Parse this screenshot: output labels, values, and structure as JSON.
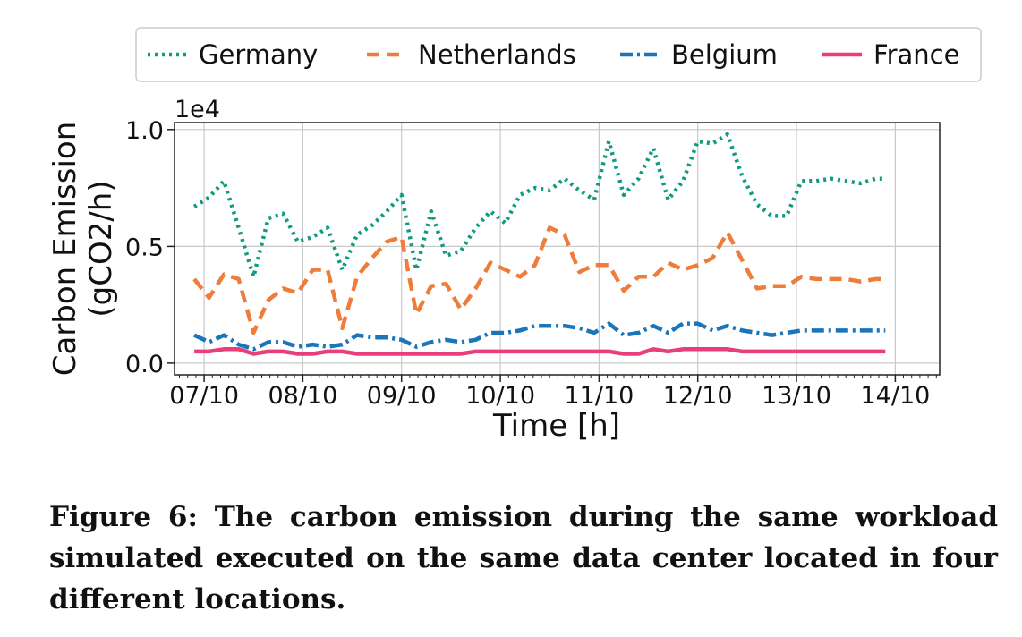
{
  "chart_data": {
    "type": "line",
    "title": "",
    "xlabel": "Time [h]",
    "ylabel": "Carbon Emission (gCO2/h)",
    "ylabel_lines": [
      "Carbon Emission",
      "(gCO2/h)"
    ],
    "y_offset_label": "1e4",
    "y_scale_note": "values in units of 1e4 gCO2/h",
    "ylim": [
      -0.05,
      1.03
    ],
    "yticks": [
      0.0,
      0.5,
      1.0
    ],
    "ytick_labels": [
      "0.0",
      "0.5",
      "1.0"
    ],
    "xlim": [
      -0.3,
      7.45
    ],
    "xticks": [
      0,
      1,
      2,
      3,
      4,
      5,
      6,
      7
    ],
    "xtick_labels": [
      "07/10",
      "08/10",
      "09/10",
      "10/10",
      "11/10",
      "12/10",
      "13/10",
      "14/10"
    ],
    "x_unit": "days since 07/10 00:00",
    "grid": true,
    "legend_position": "top, outside plot",
    "x": [
      -0.1,
      0.05,
      0.2,
      0.35,
      0.5,
      0.65,
      0.8,
      0.95,
      1.1,
      1.25,
      1.4,
      1.55,
      1.7,
      1.85,
      2.0,
      2.15,
      2.3,
      2.45,
      2.6,
      2.75,
      2.9,
      3.05,
      3.2,
      3.35,
      3.5,
      3.65,
      3.8,
      3.95,
      4.1,
      4.25,
      4.4,
      4.55,
      4.7,
      4.85,
      5.0,
      5.15,
      5.3,
      5.45,
      5.6,
      5.75,
      5.9,
      6.05,
      6.2,
      6.35,
      6.5,
      6.65,
      6.8,
      6.9
    ],
    "series": [
      {
        "name": "Germany",
        "color": "#109b80",
        "dash": "3 5",
        "values": [
          0.67,
          0.71,
          0.78,
          0.58,
          0.37,
          0.62,
          0.64,
          0.52,
          0.54,
          0.58,
          0.4,
          0.55,
          0.59,
          0.65,
          0.72,
          0.4,
          0.65,
          0.46,
          0.48,
          0.58,
          0.65,
          0.6,
          0.72,
          0.75,
          0.74,
          0.79,
          0.74,
          0.7,
          0.95,
          0.72,
          0.79,
          0.92,
          0.7,
          0.78,
          0.95,
          0.94,
          0.98,
          0.8,
          0.68,
          0.63,
          0.63,
          0.78,
          0.78,
          0.79,
          0.78,
          0.77,
          0.79,
          0.79
        ]
      },
      {
        "name": "Netherlands",
        "color": "#ee7c3a",
        "dash": "14 8",
        "values": [
          0.36,
          0.28,
          0.38,
          0.36,
          0.13,
          0.27,
          0.32,
          0.3,
          0.4,
          0.4,
          0.15,
          0.37,
          0.45,
          0.52,
          0.54,
          0.21,
          0.33,
          0.34,
          0.23,
          0.32,
          0.43,
          0.4,
          0.37,
          0.42,
          0.58,
          0.55,
          0.39,
          0.42,
          0.42,
          0.31,
          0.37,
          0.37,
          0.43,
          0.4,
          0.42,
          0.45,
          0.56,
          0.44,
          0.32,
          0.33,
          0.33,
          0.37,
          0.36,
          0.36,
          0.36,
          0.35,
          0.36,
          0.36
        ]
      },
      {
        "name": "Belgium",
        "color": "#1b75bb",
        "dash": "14 5 3 5",
        "values": [
          0.12,
          0.09,
          0.12,
          0.08,
          0.06,
          0.09,
          0.09,
          0.07,
          0.08,
          0.07,
          0.08,
          0.12,
          0.11,
          0.11,
          0.1,
          0.07,
          0.09,
          0.1,
          0.09,
          0.1,
          0.13,
          0.13,
          0.14,
          0.16,
          0.16,
          0.16,
          0.15,
          0.13,
          0.17,
          0.12,
          0.13,
          0.16,
          0.13,
          0.17,
          0.17,
          0.14,
          0.16,
          0.14,
          0.13,
          0.12,
          0.13,
          0.14,
          0.14,
          0.14,
          0.14,
          0.14,
          0.14,
          0.14
        ]
      },
      {
        "name": "France",
        "color": "#e83e7e",
        "dash": "",
        "values": [
          0.05,
          0.05,
          0.06,
          0.06,
          0.04,
          0.05,
          0.05,
          0.04,
          0.04,
          0.05,
          0.05,
          0.04,
          0.04,
          0.04,
          0.04,
          0.04,
          0.04,
          0.04,
          0.04,
          0.05,
          0.05,
          0.05,
          0.05,
          0.05,
          0.05,
          0.05,
          0.05,
          0.05,
          0.05,
          0.04,
          0.04,
          0.06,
          0.05,
          0.06,
          0.06,
          0.06,
          0.06,
          0.05,
          0.05,
          0.05,
          0.05,
          0.05,
          0.05,
          0.05,
          0.05,
          0.05,
          0.05,
          0.05
        ]
      }
    ]
  },
  "caption": "Figure 6: The carbon emission during the same workload simulated executed on the same data center located in four different locations."
}
